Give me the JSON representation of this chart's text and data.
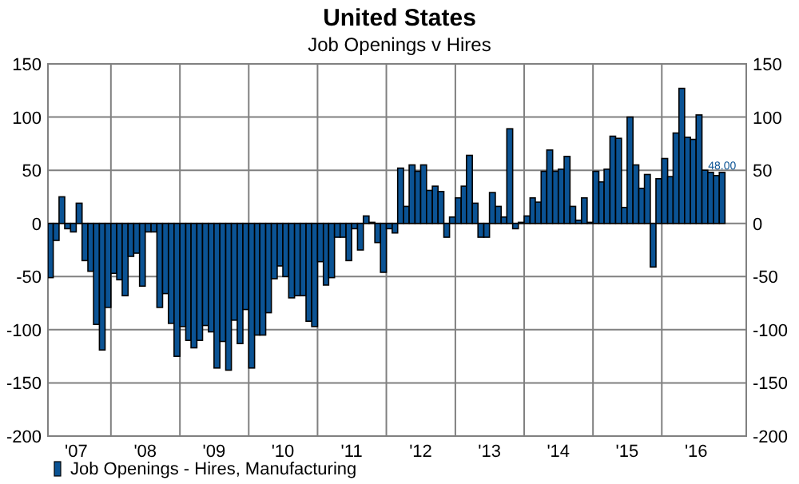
{
  "chart_data": {
    "type": "bar",
    "title": "United States",
    "subtitle": "Job Openings v Hires",
    "x": [
      "2007-02",
      "2007-03",
      "2007-04",
      "2007-05",
      "2007-06",
      "2007-07",
      "2007-08",
      "2007-09",
      "2007-10",
      "2007-11",
      "2007-12",
      "2008-01",
      "2008-02",
      "2008-03",
      "2008-04",
      "2008-05",
      "2008-06",
      "2008-07",
      "2008-08",
      "2008-09",
      "2008-10",
      "2008-11",
      "2008-12",
      "2009-01",
      "2009-02",
      "2009-03",
      "2009-04",
      "2009-05",
      "2009-06",
      "2009-07",
      "2009-08",
      "2009-09",
      "2009-10",
      "2009-11",
      "2009-12",
      "2010-01",
      "2010-02",
      "2010-03",
      "2010-04",
      "2010-05",
      "2010-06",
      "2010-07",
      "2010-08",
      "2010-09",
      "2010-10",
      "2010-11",
      "2010-12",
      "2011-01",
      "2011-02",
      "2011-03",
      "2011-04",
      "2011-05",
      "2011-06",
      "2011-07",
      "2011-08",
      "2011-09",
      "2011-10",
      "2011-11",
      "2011-12",
      "2012-01",
      "2012-02",
      "2012-03",
      "2012-04",
      "2012-05",
      "2012-06",
      "2012-07",
      "2012-08",
      "2012-09",
      "2012-10",
      "2012-11",
      "2012-12",
      "2013-01",
      "2013-02",
      "2013-03",
      "2013-04",
      "2013-05",
      "2013-06",
      "2013-07",
      "2013-08",
      "2013-09",
      "2013-10",
      "2013-11",
      "2013-12",
      "2014-01",
      "2014-02",
      "2014-03",
      "2014-04",
      "2014-05",
      "2014-06",
      "2014-07",
      "2014-08",
      "2014-09",
      "2014-10",
      "2014-11",
      "2014-12",
      "2015-01",
      "2015-02",
      "2015-03",
      "2015-04",
      "2015-05",
      "2015-06",
      "2015-07",
      "2015-08",
      "2015-09",
      "2015-10",
      "2015-11",
      "2015-12",
      "2016-01",
      "2016-02",
      "2016-03",
      "2016-04",
      "2016-05",
      "2016-06",
      "2016-07",
      "2016-08",
      "2016-09",
      "2016-10",
      "2016-11"
    ],
    "series": [
      {
        "name": "Job Openings - Hires, Manufacturing",
        "color": "#0b5394",
        "values": [
          -51,
          -16,
          25,
          -5,
          -8,
          19,
          -35,
          -45,
          -95,
          -119,
          -79,
          -47,
          -53,
          -68,
          -31,
          -28,
          -59,
          -8,
          -8,
          -79,
          -66,
          -94,
          -125,
          -97,
          -110,
          -117,
          -110,
          -96,
          -102,
          -136,
          -111,
          -138,
          -91,
          -113,
          -81,
          -136,
          -105,
          -105,
          -84,
          -52,
          -40,
          -50,
          -70,
          -68,
          -68,
          -92,
          -97,
          -36,
          -58,
          -51,
          -13,
          -13,
          -35,
          -5,
          -25,
          7,
          1,
          -18,
          -46,
          -5,
          -9,
          52,
          16,
          55,
          49,
          55,
          31,
          35,
          30,
          -13,
          6,
          24,
          35,
          64,
          19,
          -13,
          -13,
          29,
          16,
          6,
          89,
          -5,
          1,
          7,
          24,
          20,
          49,
          69,
          49,
          51,
          63,
          16,
          3,
          24,
          1,
          49,
          39,
          51,
          82,
          80,
          15,
          100,
          55,
          33,
          46,
          -41,
          42,
          61,
          44,
          85,
          127,
          81,
          79,
          102,
          50,
          48,
          45,
          48
        ],
        "value_labels": [
          null,
          null,
          null,
          null,
          null,
          null,
          null,
          null,
          null,
          null,
          null,
          null,
          null,
          null,
          null,
          null,
          null,
          null,
          null,
          null,
          null,
          null,
          null,
          null,
          null,
          null,
          null,
          null,
          null,
          null,
          null,
          null,
          null,
          null,
          null,
          null,
          null,
          null,
          null,
          null,
          null,
          null,
          null,
          null,
          null,
          null,
          null,
          null,
          null,
          null,
          null,
          null,
          null,
          null,
          null,
          null,
          null,
          null,
          null,
          null,
          null,
          null,
          null,
          null,
          null,
          null,
          null,
          null,
          null,
          null,
          null,
          null,
          null,
          null,
          null,
          null,
          null,
          null,
          null,
          null,
          null,
          null,
          null,
          null,
          null,
          null,
          null,
          null,
          null,
          null,
          null,
          null,
          null,
          null,
          null,
          null,
          null,
          null,
          null,
          null,
          null,
          null,
          null,
          null,
          null,
          null,
          null,
          null,
          null,
          null,
          null,
          null,
          null,
          null,
          null,
          null,
          null,
          "48.00"
        ]
      }
    ],
    "xlim": [
      "2007-02-01",
      "2017-03-24"
    ],
    "xticks": [
      {
        "value": "2007-07-01",
        "label": "'07"
      },
      {
        "value": "2008-01-01",
        "label": null
      },
      {
        "value": "2008-07-01",
        "label": "'08"
      },
      {
        "value": "2009-01-01",
        "label": null
      },
      {
        "value": "2009-07-01",
        "label": "'09"
      },
      {
        "value": "2010-01-01",
        "label": null
      },
      {
        "value": "2010-07-01",
        "label": "'10"
      },
      {
        "value": "2011-01-01",
        "label": null
      },
      {
        "value": "2011-07-01",
        "label": "'11"
      },
      {
        "value": "2012-01-01",
        "label": null
      },
      {
        "value": "2012-07-01",
        "label": "'12"
      },
      {
        "value": "2013-01-01",
        "label": null
      },
      {
        "value": "2013-07-01",
        "label": "'13"
      },
      {
        "value": "2014-01-01",
        "label": null
      },
      {
        "value": "2014-07-01",
        "label": "'14"
      },
      {
        "value": "2015-01-01",
        "label": null
      },
      {
        "value": "2015-07-01",
        "label": "'15"
      },
      {
        "value": "2016-01-01",
        "label": null
      },
      {
        "value": "2016-07-01",
        "label": "'16"
      }
    ],
    "ylim": [
      -200,
      150
    ],
    "yticks": [
      -200,
      -150,
      -100,
      -50,
      0,
      50,
      100,
      150
    ],
    "y2lim": [
      -200,
      150
    ],
    "y2ticks": [
      -200,
      -150,
      -100,
      -50,
      0,
      50,
      100,
      150
    ],
    "grid": true,
    "legend": "bottom left"
  }
}
